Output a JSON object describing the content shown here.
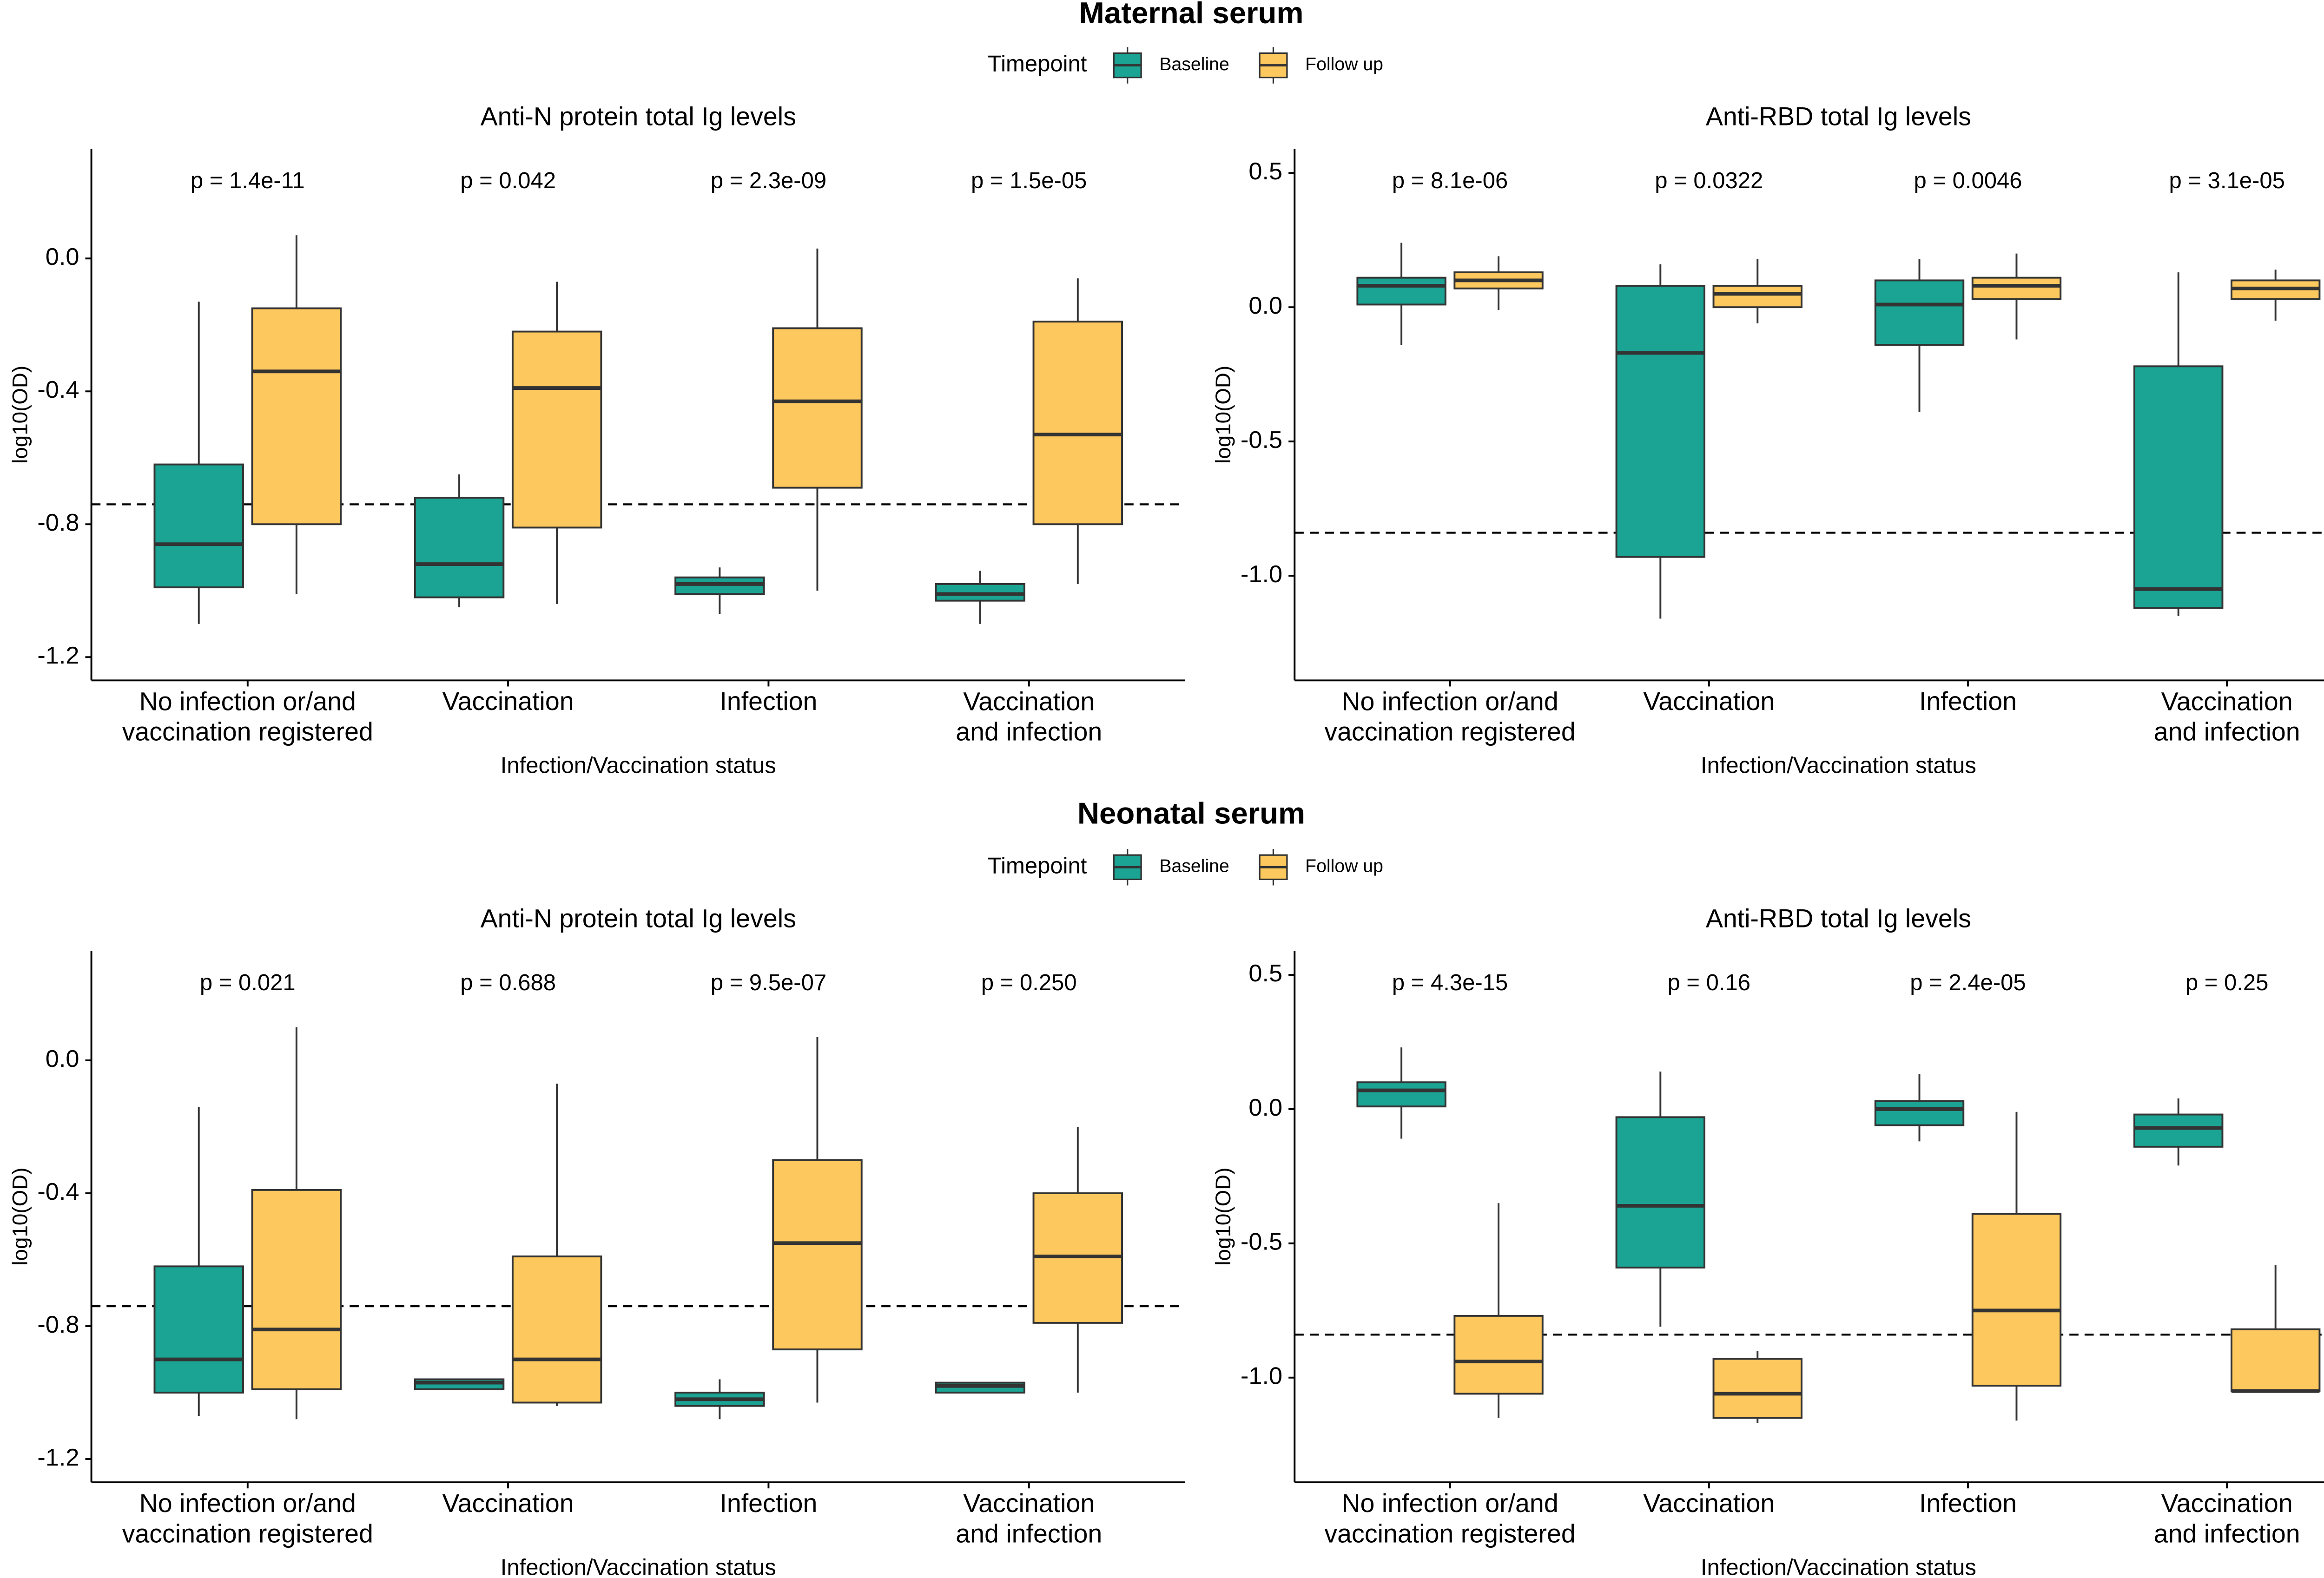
{
  "sections": [
    {
      "title": "Maternal serum",
      "legend_title": "Timepoint"
    },
    {
      "title": "Neonatal serum",
      "legend_title": "Timepoint"
    }
  ],
  "chart_data": [
    {
      "type": "box",
      "title": "Anti-N protein total Ig levels",
      "xlabel": "Infection/Vaccination status",
      "ylabel": "log10(OD)",
      "categories": [
        "No infection or/and\nvaccination registered",
        "Vaccination",
        "Infection",
        "Vaccination\nand infection"
      ],
      "ylim": [
        -1.27,
        0.33
      ],
      "yticks": [
        {
          "value": 0,
          "label": "0.0"
        },
        -0.4,
        -0.8,
        -1.2
      ],
      "threshold": -0.74,
      "annotations": [
        "p = 1.4e-11",
        "p = 0.042",
        "p = 2.3e-09",
        "p = 1.5e-05"
      ],
      "series": [
        {
          "name": "Baseline",
          "color": "#1ba394",
          "values": [
            {
              "low": -1.1,
              "q1": -0.99,
              "median": -0.86,
              "q3": -0.62,
              "high": -0.13
            },
            {
              "low": -1.05,
              "q1": -1.02,
              "median": -0.92,
              "q3": -0.72,
              "high": -0.65
            },
            {
              "low": -1.07,
              "q1": -1.01,
              "median": -0.98,
              "q3": -0.96,
              "high": -0.93
            },
            {
              "low": -1.1,
              "q1": -1.03,
              "median": -1.01,
              "q3": -0.98,
              "high": -0.94
            }
          ]
        },
        {
          "name": "Follow up",
          "color": "#fdc85e",
          "values": [
            {
              "low": -1.01,
              "q1": -0.8,
              "median": -0.34,
              "q3": -0.15,
              "high": 0.07
            },
            {
              "low": -1.04,
              "q1": -0.81,
              "median": -0.39,
              "q3": -0.22,
              "high": -0.07
            },
            {
              "low": -1.0,
              "q1": -0.69,
              "median": -0.43,
              "q3": -0.21,
              "high": 0.03
            },
            {
              "low": -0.98,
              "q1": -0.8,
              "median": -0.53,
              "q3": -0.19,
              "high": -0.06
            }
          ]
        }
      ]
    },
    {
      "type": "box",
      "title": "Anti-RBD total Ig levels",
      "xlabel": "Infection/Vaccination status",
      "ylabel": "log10(OD)",
      "categories": [
        "No infection or/and\nvaccination registered",
        "Vaccination",
        "Infection",
        "Vaccination\nand infection"
      ],
      "ylim": [
        -1.39,
        0.59
      ],
      "yticks": [
        0.5,
        {
          "value": 0,
          "label": "0.0"
        },
        -0.5,
        {
          "value": -1,
          "label": "-1.0"
        }
      ],
      "threshold": -0.84,
      "annotations": [
        "p = 8.1e-06",
        "p = 0.0322",
        "p = 0.0046",
        "p = 3.1e-05"
      ],
      "series": [
        {
          "name": "Baseline",
          "color": "#1ba394",
          "values": [
            {
              "low": -0.14,
              "q1": 0.01,
              "median": 0.08,
              "q3": 0.11,
              "high": 0.24
            },
            {
              "low": -1.16,
              "q1": -0.93,
              "median": -0.17,
              "q3": 0.08,
              "high": 0.16
            },
            {
              "low": -0.39,
              "q1": -0.14,
              "median": 0.01,
              "q3": 0.1,
              "high": 0.18
            },
            {
              "low": -1.15,
              "q1": -1.12,
              "median": -1.05,
              "q3": -0.22,
              "high": 0.13
            }
          ]
        },
        {
          "name": "Follow up",
          "color": "#fdc85e",
          "values": [
            {
              "low": -0.01,
              "q1": 0.07,
              "median": 0.1,
              "q3": 0.13,
              "high": 0.19
            },
            {
              "low": -0.06,
              "q1": 0.0,
              "median": 0.05,
              "q3": 0.08,
              "high": 0.18
            },
            {
              "low": -0.12,
              "q1": 0.03,
              "median": 0.08,
              "q3": 0.11,
              "high": 0.2
            },
            {
              "low": -0.05,
              "q1": 0.03,
              "median": 0.07,
              "q3": 0.1,
              "high": 0.14
            }
          ]
        }
      ]
    },
    {
      "type": "box",
      "title": "Anti-N protein total Ig levels",
      "xlabel": "Infection/Vaccination status",
      "ylabel": "log10(OD)",
      "categories": [
        "No infection or/and\nvaccination registered",
        "Vaccination",
        "Infection",
        "Vaccination\nand infection"
      ],
      "ylim": [
        -1.27,
        0.33
      ],
      "yticks": [
        {
          "value": 0,
          "label": "0.0"
        },
        -0.4,
        -0.8,
        -1.2
      ],
      "threshold": -0.74,
      "annotations": [
        "p = 0.021",
        "p = 0.688",
        "p = 9.5e-07",
        "p = 0.250"
      ],
      "series": [
        {
          "name": "Baseline",
          "color": "#1ba394",
          "values": [
            {
              "low": -1.07,
              "q1": -1.0,
              "median": -0.9,
              "q3": -0.62,
              "high": -0.14
            },
            {
              "low": -0.99,
              "q1": -0.99,
              "median": -0.97,
              "q3": -0.96,
              "high": -0.96
            },
            {
              "low": -1.08,
              "q1": -1.04,
              "median": -1.02,
              "q3": -1.0,
              "high": -0.96
            },
            {
              "low": -1.0,
              "q1": -1.0,
              "median": -0.98,
              "q3": -0.97,
              "high": -0.97
            }
          ]
        },
        {
          "name": "Follow up",
          "color": "#fdc85e",
          "values": [
            {
              "low": -1.08,
              "q1": -0.99,
              "median": -0.81,
              "q3": -0.39,
              "high": 0.1
            },
            {
              "low": -1.04,
              "q1": -1.03,
              "median": -0.9,
              "q3": -0.59,
              "high": -0.07
            },
            {
              "low": -1.03,
              "q1": -0.87,
              "median": -0.55,
              "q3": -0.3,
              "high": 0.07
            },
            {
              "low": -1.0,
              "q1": -0.79,
              "median": -0.59,
              "q3": -0.4,
              "high": -0.2
            }
          ]
        }
      ]
    },
    {
      "type": "box",
      "title": "Anti-RBD total Ig levels",
      "xlabel": "Infection/Vaccination status",
      "ylabel": "log10(OD)",
      "categories": [
        "No infection or/and\nvaccination registered",
        "Vaccination",
        "Infection",
        "Vaccination\nand infection"
      ],
      "ylim": [
        -1.39,
        0.59
      ],
      "yticks": [
        0.5,
        {
          "value": 0,
          "label": "0.0"
        },
        -0.5,
        {
          "value": -1,
          "label": "-1.0"
        }
      ],
      "threshold": -0.84,
      "annotations": [
        "p = 4.3e-15",
        "p = 0.16",
        "p = 2.4e-05",
        "p = 0.25"
      ],
      "series": [
        {
          "name": "Baseline",
          "color": "#1ba394",
          "values": [
            {
              "low": -0.11,
              "q1": 0.01,
              "median": 0.07,
              "q3": 0.1,
              "high": 0.23
            },
            {
              "low": -0.81,
              "q1": -0.59,
              "median": -0.36,
              "q3": -0.03,
              "high": 0.14
            },
            {
              "low": -0.12,
              "q1": -0.06,
              "median": 0.0,
              "q3": 0.03,
              "high": 0.13
            },
            {
              "low": -0.21,
              "q1": -0.14,
              "median": -0.07,
              "q3": -0.02,
              "high": 0.04
            }
          ]
        },
        {
          "name": "Follow up",
          "color": "#fdc85e",
          "values": [
            {
              "low": -1.15,
              "q1": -1.06,
              "median": -0.94,
              "q3": -0.77,
              "high": -0.35
            },
            {
              "low": -1.17,
              "q1": -1.15,
              "median": -1.06,
              "q3": -0.93,
              "high": -0.9
            },
            {
              "low": -1.16,
              "q1": -1.03,
              "median": -0.75,
              "q3": -0.39,
              "high": -0.01
            },
            {
              "low": -1.05,
              "q1": -1.05,
              "median": -1.05,
              "q3": -0.82,
              "high": -0.58
            }
          ]
        }
      ]
    }
  ]
}
